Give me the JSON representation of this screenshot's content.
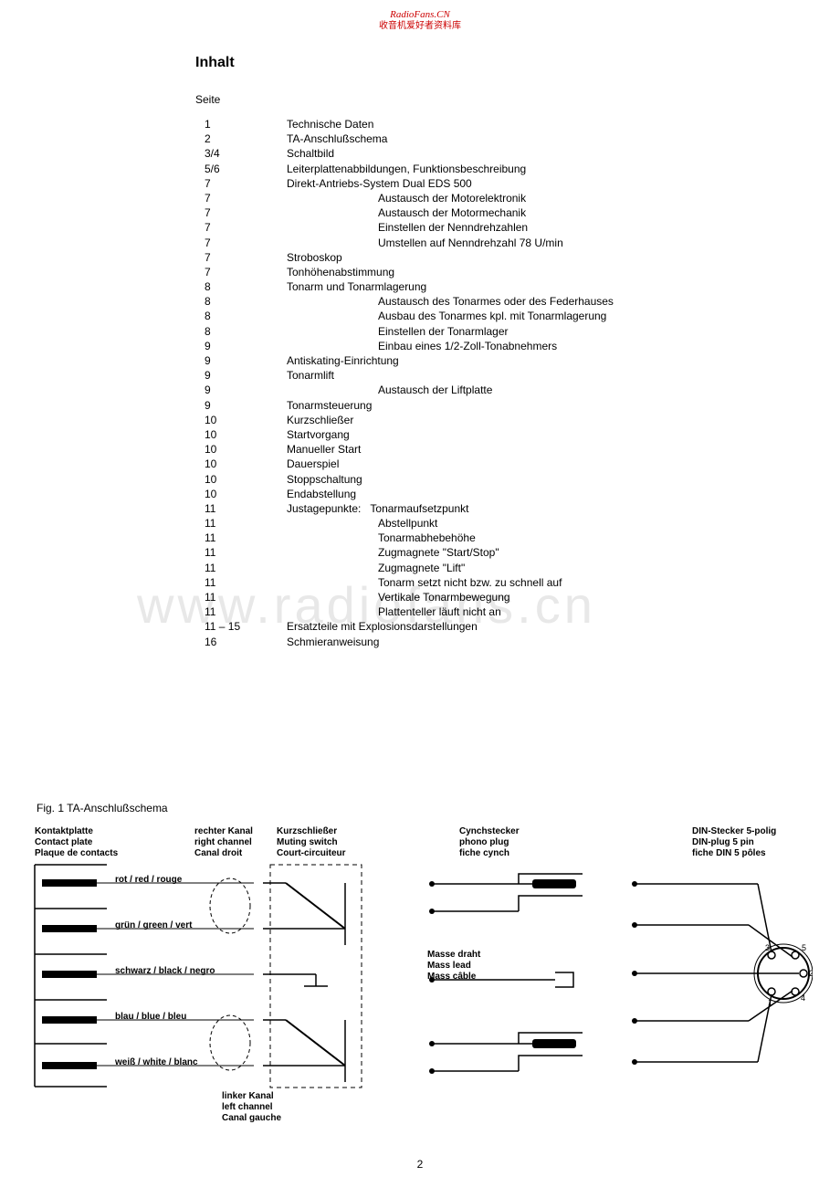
{
  "watermark": {
    "line1": "RadioFans.CN",
    "line2": "收音机爱好者资料库",
    "big": "www.radiofans.cn"
  },
  "title": "Inhalt",
  "seite_label": "Seite",
  "toc": [
    {
      "page": "1",
      "text": "Technische Daten",
      "indent": 1
    },
    {
      "page": "2",
      "text": "TA-Anschlußschema",
      "indent": 1
    },
    {
      "page": "3/4",
      "text": "Schaltbild",
      "indent": 1
    },
    {
      "page": "5/6",
      "text": "Leiterplattenabbildungen, Funktionsbeschreibung",
      "indent": 1
    },
    {
      "page": "7",
      "text": "Direkt-Antriebs-System Dual EDS 500",
      "indent": 1
    },
    {
      "page": "7",
      "text": "Austausch der Motorelektronik",
      "indent": 2
    },
    {
      "page": "7",
      "text": "Austausch der Motormechanik",
      "indent": 2
    },
    {
      "page": "7",
      "text": "Einstellen der Nenndrehzahlen",
      "indent": 2
    },
    {
      "page": "7",
      "text": "Umstellen auf Nenndrehzahl 78 U/min",
      "indent": 2
    },
    {
      "page": "7",
      "text": "Stroboskop",
      "indent": 1
    },
    {
      "page": "7",
      "text": "Tonhöhenabstimmung",
      "indent": 1
    },
    {
      "page": "8",
      "text": "Tonarm und Tonarmlagerung",
      "indent": 1
    },
    {
      "page": "8",
      "text": "Austausch des Tonarmes oder des Federhauses",
      "indent": 2
    },
    {
      "page": "8",
      "text": "Ausbau des Tonarmes kpl. mit Tonarmlagerung",
      "indent": 2
    },
    {
      "page": "8",
      "text": "Einstellen der Tonarmlager",
      "indent": 2
    },
    {
      "page": "9",
      "text": "Einbau eines 1/2-Zoll-Tonabnehmers",
      "indent": 2
    },
    {
      "page": "9",
      "text": "Antiskating-Einrichtung",
      "indent": 1
    },
    {
      "page": "9",
      "text": "Tonarmlift",
      "indent": 1
    },
    {
      "page": "9",
      "text": "Austausch der Liftplatte",
      "indent": 2
    },
    {
      "page": "9",
      "text": "Tonarmsteuerung",
      "indent": 1
    },
    {
      "page": "10",
      "text": "Kurzschließer",
      "indent": 1
    },
    {
      "page": "10",
      "text": "Startvorgang",
      "indent": 1
    },
    {
      "page": "10",
      "text": "Manueller Start",
      "indent": 1
    },
    {
      "page": "10",
      "text": "Dauerspiel",
      "indent": 1
    },
    {
      "page": "10",
      "text": "Stoppschaltung",
      "indent": 1
    },
    {
      "page": "10",
      "text": "Endabstellung",
      "indent": 1
    },
    {
      "page": "11",
      "text": "Justagepunkte:   Tonarmaufsetzpunkt",
      "indent": 1
    },
    {
      "page": "11",
      "text": "Abstellpunkt",
      "indent": 2
    },
    {
      "page": "11",
      "text": "Tonarmabhebehöhe",
      "indent": 2
    },
    {
      "page": "11",
      "text": "Zugmagnete \"Start/Stop\"",
      "indent": 2
    },
    {
      "page": "11",
      "text": "Zugmagnete \"Lift\"",
      "indent": 2
    },
    {
      "page": "11",
      "text": "Tonarm setzt nicht bzw. zu schnell auf",
      "indent": 2
    },
    {
      "page": "11",
      "text": "Vertikale Tonarmbewegung",
      "indent": 2
    },
    {
      "page": "11",
      "text": "Plattenteller läuft nicht an",
      "indent": 2
    },
    {
      "page": "11 – 15",
      "text": "Ersatzteile mit Explosionsdarstellungen",
      "indent": 1
    },
    {
      "page": "16",
      "text": "Schmieranweisung",
      "indent": 1
    }
  ],
  "fig_caption": "Fig. 1  TA-Anschlußschema",
  "diagram": {
    "kontaktplatte": {
      "de": "Kontaktplatte",
      "en": "Contact plate",
      "fr": "Plaque de contacts"
    },
    "rechter_kanal": {
      "de": "rechter Kanal",
      "en": "right channel",
      "fr": "Canal droit"
    },
    "kurzschliesser": {
      "de": "Kurzschließer",
      "en": "Muting switch",
      "fr": "Court-circuiteur"
    },
    "cynchstecker": {
      "de": "Cynchstecker",
      "en": "phono plug",
      "fr": "fiche cynch"
    },
    "din_stecker": {
      "de": "DIN-Stecker 5-polig",
      "en": "DIN-plug 5 pin",
      "fr": "fiche DIN 5 pôles"
    },
    "masse": {
      "de": "Masse draht",
      "en": "Mass lead",
      "fr": "Mass câble"
    },
    "linker_kanal": {
      "de": "linker Kanal",
      "en": "left channel",
      "fr": "Canal gauche"
    },
    "colors": {
      "rot": "rot / red / rouge",
      "gruen": "grün / green / vert",
      "schwarz": "schwarz / black / negro",
      "blau": "blau / blue / bleu",
      "weiss": "weiß / white / blanc"
    },
    "pins": [
      "1",
      "2",
      "3",
      "4",
      "5"
    ]
  },
  "page_number": "2",
  "colors": {
    "text": "#000000",
    "watermark_red": "#cc0000",
    "watermark_gray": "#e8e8e8",
    "background": "#ffffff"
  }
}
